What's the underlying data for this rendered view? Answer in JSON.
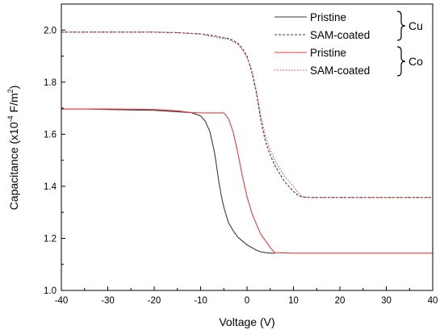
{
  "chart_data": {
    "type": "line",
    "xlabel": "Voltage (V)",
    "ylabel_main": "Capacitance (x10",
    "ylabel_exp": "-4",
    "ylabel_unit": " F/m",
    "ylabel_unit_exp": "2",
    "ylabel_end": ")",
    "xlim": [
      -40,
      40
    ],
    "ylim": [
      1.0,
      2.1
    ],
    "xticks": [
      -40,
      -30,
      -20,
      -10,
      0,
      10,
      20,
      30,
      40
    ],
    "yticks": [
      1.0,
      1.2,
      1.4,
      1.6,
      1.8,
      2.0
    ],
    "ytick_labels": [
      "1.0",
      "1.2",
      "1.4",
      "1.6",
      "1.8",
      "2.0"
    ],
    "grid": false,
    "legend_position": "top-right",
    "legend_groups": [
      {
        "label": "Cu",
        "series_indices": [
          0,
          1
        ]
      },
      {
        "label": "Co",
        "series_indices": [
          2,
          3
        ]
      }
    ],
    "series": [
      {
        "name": "Pristine",
        "color": "#3a3a3a",
        "dash": "solid",
        "x": [
          -40,
          -35,
          -30,
          -25,
          -20,
          -15,
          -12,
          -10,
          -9,
          -8,
          -7,
          -6.5,
          -6,
          -5.5,
          -5,
          -4,
          -3,
          -2,
          -1,
          0,
          1,
          2,
          3,
          4,
          5,
          6
        ],
        "y": [
          1.697,
          1.697,
          1.695,
          1.693,
          1.692,
          1.686,
          1.683,
          1.67,
          1.65,
          1.61,
          1.53,
          1.47,
          1.41,
          1.36,
          1.32,
          1.26,
          1.23,
          1.205,
          1.19,
          1.175,
          1.165,
          1.155,
          1.148,
          1.145,
          1.143,
          1.143
        ]
      },
      {
        "name": "SAM-coated",
        "color": "#3a3a3a",
        "dash": "dashed",
        "x": [
          -40,
          -30,
          -20,
          -15,
          -10,
          -7,
          -5,
          -4,
          -3,
          -2,
          -1,
          0,
          1,
          2,
          3,
          4,
          5,
          6,
          7,
          8,
          9,
          10,
          11,
          12,
          14,
          20,
          30,
          40
        ],
        "y": [
          1.992,
          1.992,
          1.992,
          1.99,
          1.985,
          1.978,
          1.97,
          1.968,
          1.96,
          1.95,
          1.93,
          1.9,
          1.84,
          1.76,
          1.65,
          1.57,
          1.52,
          1.48,
          1.45,
          1.42,
          1.4,
          1.38,
          1.365,
          1.358,
          1.357,
          1.357,
          1.357,
          1.357
        ]
      },
      {
        "name": "Pristine",
        "color": "#ee3b3b",
        "dash": "solid",
        "x": [
          -40,
          -30,
          -20,
          -15,
          -12,
          -10,
          -5,
          -4,
          -3,
          -2,
          -1,
          0,
          1,
          2,
          3,
          4,
          5,
          6,
          10,
          20,
          30,
          40
        ],
        "y": [
          1.697,
          1.697,
          1.695,
          1.69,
          1.683,
          1.682,
          1.682,
          1.66,
          1.61,
          1.53,
          1.44,
          1.36,
          1.3,
          1.255,
          1.215,
          1.19,
          1.165,
          1.145,
          1.143,
          1.143,
          1.143,
          1.143
        ]
      },
      {
        "name": "SAM-coated",
        "color": "#ee3b3b",
        "dash": "dotted",
        "x": [
          -40,
          -30,
          -20,
          -15,
          -10,
          -8,
          -6,
          -4,
          -3,
          -2,
          -1,
          0,
          1,
          2,
          3,
          4,
          5,
          6,
          7,
          8,
          9,
          10,
          11,
          12,
          14,
          20,
          30,
          40
        ],
        "y": [
          1.992,
          1.992,
          1.992,
          1.99,
          1.985,
          1.977,
          1.97,
          1.965,
          1.955,
          1.945,
          1.925,
          1.895,
          1.85,
          1.77,
          1.67,
          1.59,
          1.54,
          1.5,
          1.47,
          1.44,
          1.42,
          1.4,
          1.375,
          1.36,
          1.357,
          1.357,
          1.357,
          1.357
        ]
      }
    ]
  }
}
